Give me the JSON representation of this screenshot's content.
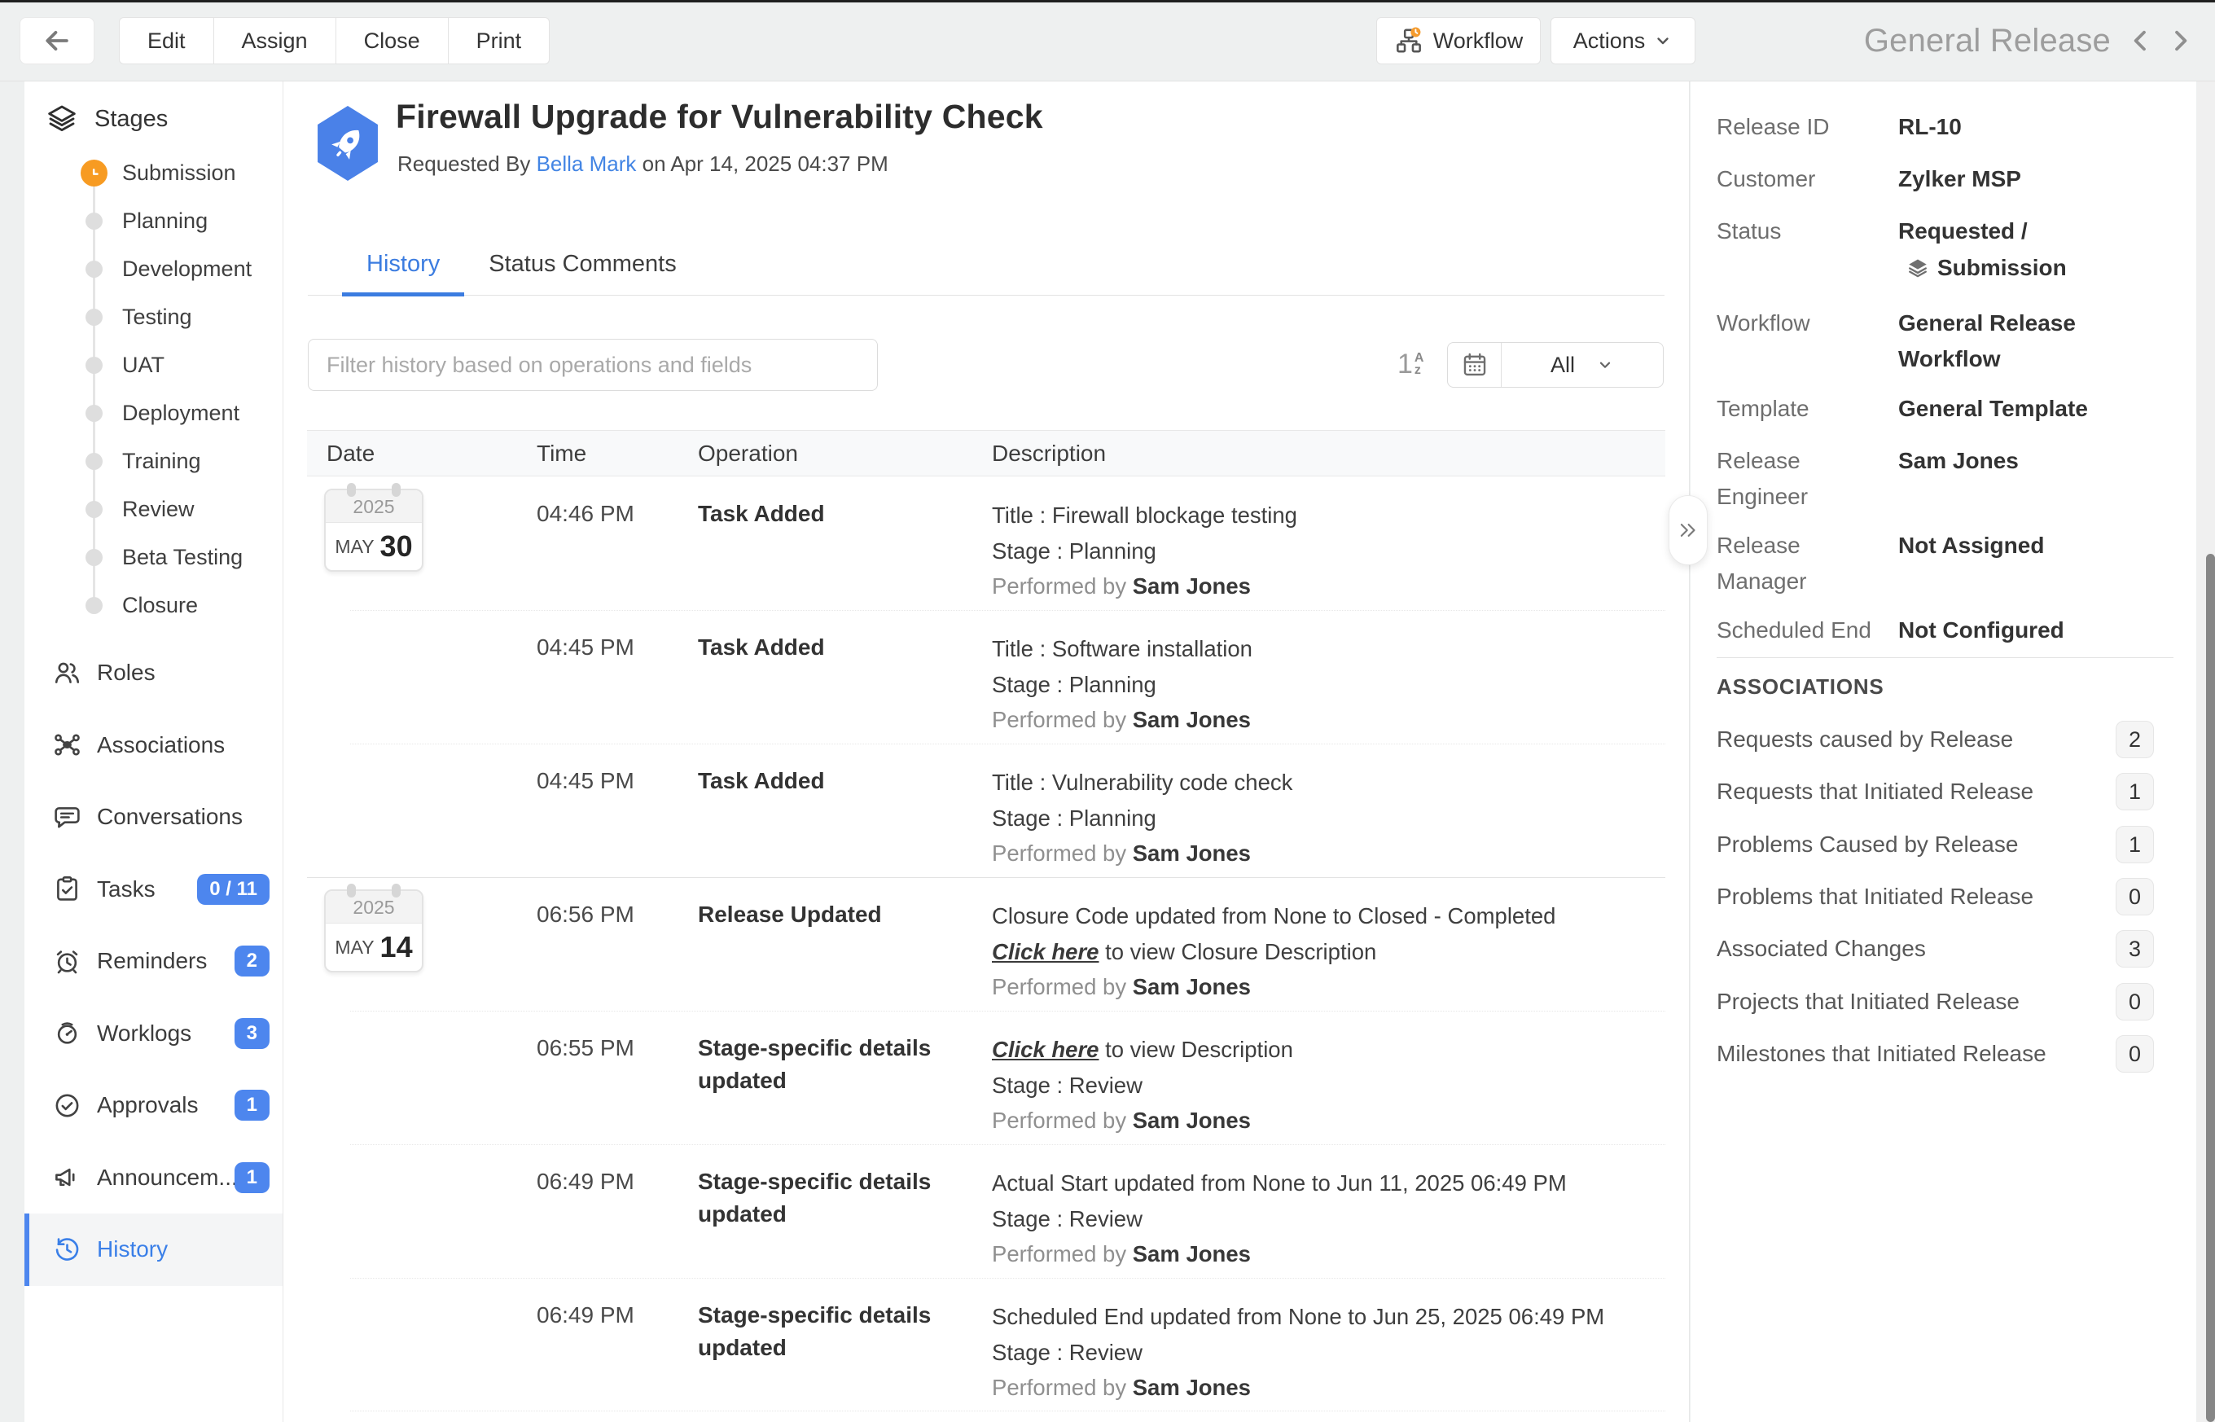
{
  "window": {
    "record_type_title": "General Release"
  },
  "topbar": {
    "buttons": [
      "Edit",
      "Assign",
      "Close",
      "Print"
    ],
    "workflow_label": "Workflow",
    "actions_label": "Actions"
  },
  "sidebar": {
    "stages_title": "Stages",
    "stages": [
      {
        "label": "Submission",
        "current": true
      },
      {
        "label": "Planning"
      },
      {
        "label": "Development"
      },
      {
        "label": "Testing"
      },
      {
        "label": "UAT"
      },
      {
        "label": "Deployment"
      },
      {
        "label": "Training"
      },
      {
        "label": "Review"
      },
      {
        "label": "Beta Testing"
      },
      {
        "label": "Closure"
      }
    ],
    "items": [
      {
        "icon": "roles",
        "label": "Roles"
      },
      {
        "icon": "associations",
        "label": "Associations"
      },
      {
        "icon": "conversations",
        "label": "Conversations"
      },
      {
        "icon": "tasks",
        "label": "Tasks",
        "badge": "0 / 11"
      },
      {
        "icon": "reminders",
        "label": "Reminders",
        "badge": "2"
      },
      {
        "icon": "worklogs",
        "label": "Worklogs",
        "badge": "3"
      },
      {
        "icon": "approvals",
        "label": "Approvals",
        "badge": "1"
      },
      {
        "icon": "announcements",
        "label": "Announcem...",
        "badge": "1"
      },
      {
        "icon": "history",
        "label": "History",
        "active": true
      }
    ]
  },
  "header": {
    "title": "Firewall Upgrade for Vulnerability Check",
    "requested_by_prefix": "Requested By",
    "requester": "Bella Mark",
    "requested_on": "on Apr 14, 2025 04:37 PM"
  },
  "tabs": [
    {
      "label": "History",
      "active": true
    },
    {
      "label": "Status Comments"
    }
  ],
  "filter": {
    "placeholder": "Filter history based on operations and fields",
    "range_value": "All"
  },
  "table": {
    "columns": [
      "Date",
      "Time",
      "Operation",
      "Description"
    ],
    "rows": [
      {
        "date": {
          "year": "2025",
          "month": "MAY",
          "day": "30"
        },
        "group_start": true,
        "time": "04:46 PM",
        "operation": "Task Added",
        "lines": [
          [
            {
              "t": "Title :  Firewall blockage testing"
            }
          ],
          [
            {
              "t": "Stage :  Planning"
            }
          ],
          [
            {
              "t": "Performed by ",
              "muted": true
            },
            {
              "t": "Sam Jones",
              "strong": true
            }
          ]
        ]
      },
      {
        "time": "04:45 PM",
        "operation": "Task Added",
        "lines": [
          [
            {
              "t": "Title :  Software installation"
            }
          ],
          [
            {
              "t": "Stage :  Planning"
            }
          ],
          [
            {
              "t": "Performed by ",
              "muted": true
            },
            {
              "t": "Sam Jones",
              "strong": true
            }
          ]
        ]
      },
      {
        "time": "04:45 PM",
        "operation": "Task Added",
        "lines": [
          [
            {
              "t": "Title :  Vulnerability code check"
            }
          ],
          [
            {
              "t": "Stage :  Planning"
            }
          ],
          [
            {
              "t": "Performed by ",
              "muted": true
            },
            {
              "t": "Sam Jones",
              "strong": true
            }
          ]
        ]
      },
      {
        "date": {
          "year": "2025",
          "month": "MAY",
          "day": "14"
        },
        "group_start": true,
        "time": "06:56 PM",
        "operation": "Release Updated",
        "lines": [
          [
            {
              "t": "Closure Code updated from None to Closed - Completed"
            }
          ],
          [
            {
              "t": "Click here",
              "link": true
            },
            {
              "t": " to view Closure Description"
            }
          ],
          [
            {
              "t": "Performed by ",
              "muted": true
            },
            {
              "t": "Sam Jones",
              "strong": true
            }
          ]
        ]
      },
      {
        "time": "06:55 PM",
        "operation": "Stage-specific details updated",
        "lines": [
          [
            {
              "t": "Click here",
              "link": true
            },
            {
              "t": " to view Description"
            }
          ],
          [
            {
              "t": "Stage : Review"
            }
          ],
          [
            {
              "t": "Performed by ",
              "muted": true
            },
            {
              "t": "Sam Jones",
              "strong": true
            }
          ]
        ]
      },
      {
        "time": "06:49 PM",
        "operation": "Stage-specific details updated",
        "lines": [
          [
            {
              "t": "Actual Start updated from None to Jun 11, 2025 06:49 PM"
            }
          ],
          [
            {
              "t": "Stage : Review"
            }
          ],
          [
            {
              "t": "Performed by ",
              "muted": true
            },
            {
              "t": "Sam Jones",
              "strong": true
            }
          ]
        ]
      },
      {
        "time": "06:49 PM",
        "operation": "Stage-specific details updated",
        "lines": [
          [
            {
              "t": "Scheduled End updated from None to Jun 25, 2025 06:49 PM"
            }
          ],
          [
            {
              "t": "Stage : Review"
            }
          ],
          [
            {
              "t": "Performed by ",
              "muted": true
            },
            {
              "t": "Sam Jones",
              "strong": true
            }
          ]
        ]
      }
    ]
  },
  "panel": {
    "fields": [
      {
        "label": "Release ID",
        "value": "RL-10"
      },
      {
        "label": "Customer",
        "value": "Zylker MSP"
      },
      {
        "label": "Status",
        "value": "Requested /",
        "value2": "Submission",
        "value2_icon": "layers-filled"
      },
      {
        "label": "Workflow",
        "value": "General Release Workflow"
      },
      {
        "label": "Template",
        "value": "General Template"
      },
      {
        "label": "Release Engineer",
        "value": "Sam Jones"
      },
      {
        "label": "Release Manager",
        "value": "Not Assigned"
      },
      {
        "label": "Scheduled End",
        "value": "Not Configured"
      }
    ],
    "associations_title": "ASSOCIATIONS",
    "associations": [
      {
        "label": "Requests caused by Release",
        "count": "2"
      },
      {
        "label": "Requests that Initiated Release",
        "count": "1"
      },
      {
        "label": "Problems Caused by Release",
        "count": "1"
      },
      {
        "label": "Problems that Initiated Release",
        "count": "0"
      },
      {
        "label": "Associated Changes",
        "count": "3"
      },
      {
        "label": "Projects that Initiated Release",
        "count": "0"
      },
      {
        "label": "Milestones that Initiated Release",
        "count": "0"
      }
    ]
  },
  "colors": {
    "accent_blue": "#4d86ee",
    "tab_blue": "#3b7ce0",
    "link_blue": "#4385e4",
    "stage_orange": "#f79b22",
    "icon_hex_blue": "#4a81e8"
  }
}
